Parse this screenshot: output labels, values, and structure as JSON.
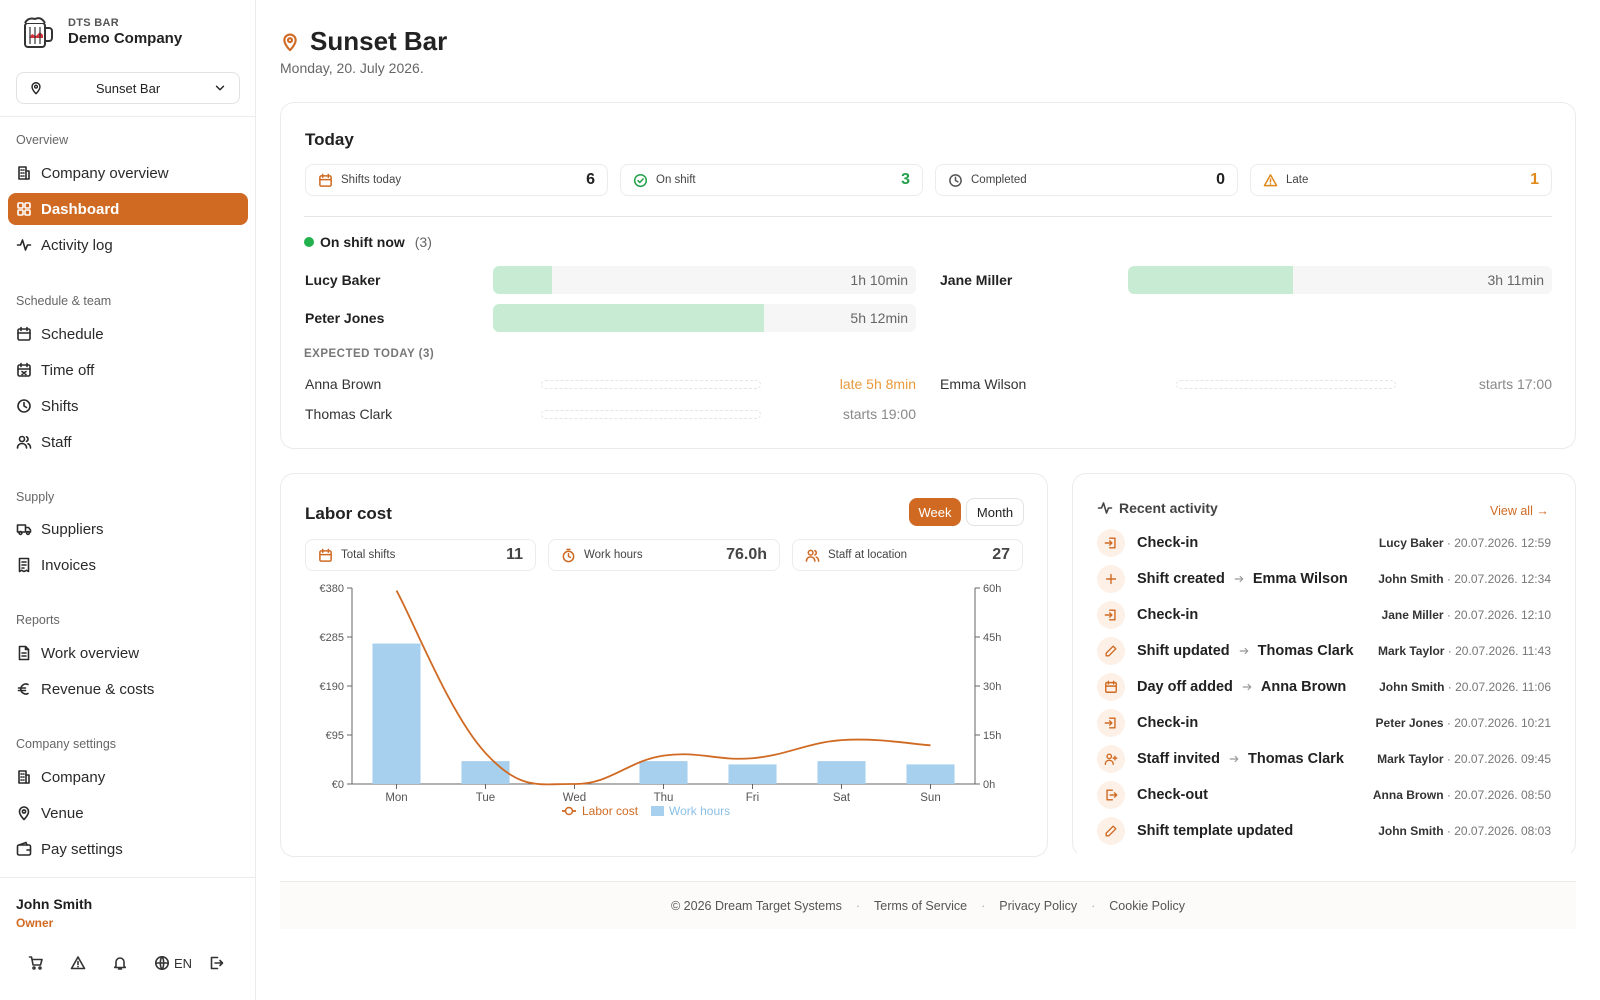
{
  "brand": {
    "small": "DTS BAR",
    "company": "Demo Company"
  },
  "location_select": {
    "value": "Sunset Bar"
  },
  "sidebar": {
    "sections": [
      {
        "title": "Overview",
        "items": [
          {
            "label": "Company overview",
            "icon": "building-icon"
          },
          {
            "label": "Dashboard",
            "icon": "grid-icon",
            "active": true
          },
          {
            "label": "Activity log",
            "icon": "activity-icon"
          }
        ]
      },
      {
        "title": "Schedule & team",
        "items": [
          {
            "label": "Schedule",
            "icon": "calendar-icon"
          },
          {
            "label": "Time off",
            "icon": "calendar-off-icon"
          },
          {
            "label": "Shifts",
            "icon": "clock-icon"
          },
          {
            "label": "Staff",
            "icon": "users-icon"
          }
        ]
      },
      {
        "title": "Supply",
        "items": [
          {
            "label": "Suppliers",
            "icon": "truck-icon"
          },
          {
            "label": "Invoices",
            "icon": "receipt-icon"
          }
        ]
      },
      {
        "title": "Reports",
        "items": [
          {
            "label": "Work overview",
            "icon": "file-icon"
          },
          {
            "label": "Revenue & costs",
            "icon": "euro-icon"
          }
        ]
      },
      {
        "title": "Company settings",
        "items": [
          {
            "label": "Company",
            "icon": "building-icon"
          },
          {
            "label": "Venue",
            "icon": "map-pin-icon"
          },
          {
            "label": "Pay settings",
            "icon": "wallet-icon"
          }
        ]
      }
    ]
  },
  "user": {
    "name": "John Smith",
    "role": "Owner",
    "language": "EN"
  },
  "page": {
    "title": "Sunset Bar",
    "date": "Monday, 20. July 2026."
  },
  "today": {
    "title": "Today",
    "stats": [
      {
        "label": "Shifts today",
        "value": "6",
        "color": "#222222"
      },
      {
        "label": "On shift",
        "value": "3",
        "color": "#22a04a"
      },
      {
        "label": "Completed",
        "value": "0",
        "color": "#222222"
      },
      {
        "label": "Late",
        "value": "1",
        "color": "#e08a1e"
      }
    ],
    "on_shift_title": "On shift now",
    "on_shift_count": "(3)",
    "on_shift": [
      {
        "name": "Lucy Baker",
        "duration": "1h 10min",
        "progress": 0.14
      },
      {
        "name": "Jane Miller",
        "duration": "3h 11min",
        "progress": 0.39
      },
      {
        "name": "Peter Jones",
        "duration": "5h 12min",
        "progress": 0.64
      }
    ],
    "expected_title": "EXPECTED TODAY (3)",
    "expected": [
      {
        "name": "Anna Brown",
        "status": "late 5h 8min",
        "late": true
      },
      {
        "name": "Emma Wilson",
        "status": "starts 17:00",
        "late": false
      },
      {
        "name": "Thomas Clark",
        "status": "starts 19:00",
        "late": false
      }
    ]
  },
  "labor": {
    "title": "Labor cost",
    "toggle": {
      "week": "Week",
      "month": "Month",
      "selected": "Week"
    },
    "stats": [
      {
        "label": "Total shifts",
        "value": "11"
      },
      {
        "label": "Work hours",
        "value": "76.0h"
      },
      {
        "label": "Staff at location",
        "value": "27"
      }
    ]
  },
  "chart_data": {
    "type": "bar",
    "categories": [
      "Mon",
      "Tue",
      "Wed",
      "Thu",
      "Fri",
      "Sat",
      "Sun"
    ],
    "series": [
      {
        "name": "Labor cost",
        "type": "line",
        "axis": "left",
        "color": "#d06a23",
        "values": [
          375,
          60,
          0,
          55,
          50,
          85,
          75
        ]
      },
      {
        "name": "Work hours",
        "type": "bar",
        "axis": "right",
        "color": "#a7d0ee",
        "values": [
          43,
          7,
          0,
          7,
          6,
          7,
          6
        ]
      }
    ],
    "y_left": {
      "ticks": [
        "€0",
        "€95",
        "€190",
        "€285",
        "€380"
      ],
      "range": [
        0,
        380
      ]
    },
    "y_right": {
      "ticks": [
        "0h",
        "15h",
        "30h",
        "45h",
        "60h"
      ],
      "range": [
        0,
        60
      ]
    },
    "legend": [
      "Labor cost",
      "Work hours"
    ],
    "legend_position": "bottom"
  },
  "activity": {
    "title": "Recent activity",
    "view_all": "View all →",
    "items": [
      {
        "icon": "login-icon",
        "action": "Check-in",
        "target": "",
        "user": "Lucy Baker",
        "time": "· 20.07.2026. 12:59"
      },
      {
        "icon": "plus-icon",
        "action": "Shift created",
        "target": "Emma Wilson",
        "user": "John Smith",
        "time": "· 20.07.2026. 12:34"
      },
      {
        "icon": "login-icon",
        "action": "Check-in",
        "target": "",
        "user": "Jane Miller",
        "time": "· 20.07.2026. 12:10"
      },
      {
        "icon": "pencil-icon",
        "action": "Shift updated",
        "target": "Thomas Clark",
        "user": "Mark Taylor",
        "time": "· 20.07.2026. 11:43"
      },
      {
        "icon": "calendar-icon",
        "action": "Day off added",
        "target": "Anna Brown",
        "user": "John Smith",
        "time": "· 20.07.2026. 11:06"
      },
      {
        "icon": "login-icon",
        "action": "Check-in",
        "target": "",
        "user": "Peter Jones",
        "time": "· 20.07.2026. 10:21"
      },
      {
        "icon": "user-plus-icon",
        "action": "Staff invited",
        "target": "Thomas Clark",
        "user": "Mark Taylor",
        "time": "· 20.07.2026. 09:45"
      },
      {
        "icon": "logout-icon",
        "action": "Check-out",
        "target": "",
        "user": "Anna Brown",
        "time": "· 20.07.2026. 08:50"
      },
      {
        "icon": "pencil-icon",
        "action": "Shift template updated",
        "target": "",
        "user": "John Smith",
        "time": "· 20.07.2026. 08:03"
      }
    ]
  },
  "footer": {
    "copyright": "© 2026 Dream Target Systems",
    "links": [
      "Terms of Service",
      "Privacy Policy",
      "Cookie Policy"
    ]
  },
  "colors": {
    "accent": "#d06a23",
    "on_shift_green": "#22b14c",
    "late_orange": "#e89a3c",
    "bar_blue": "#a7d0ee"
  }
}
